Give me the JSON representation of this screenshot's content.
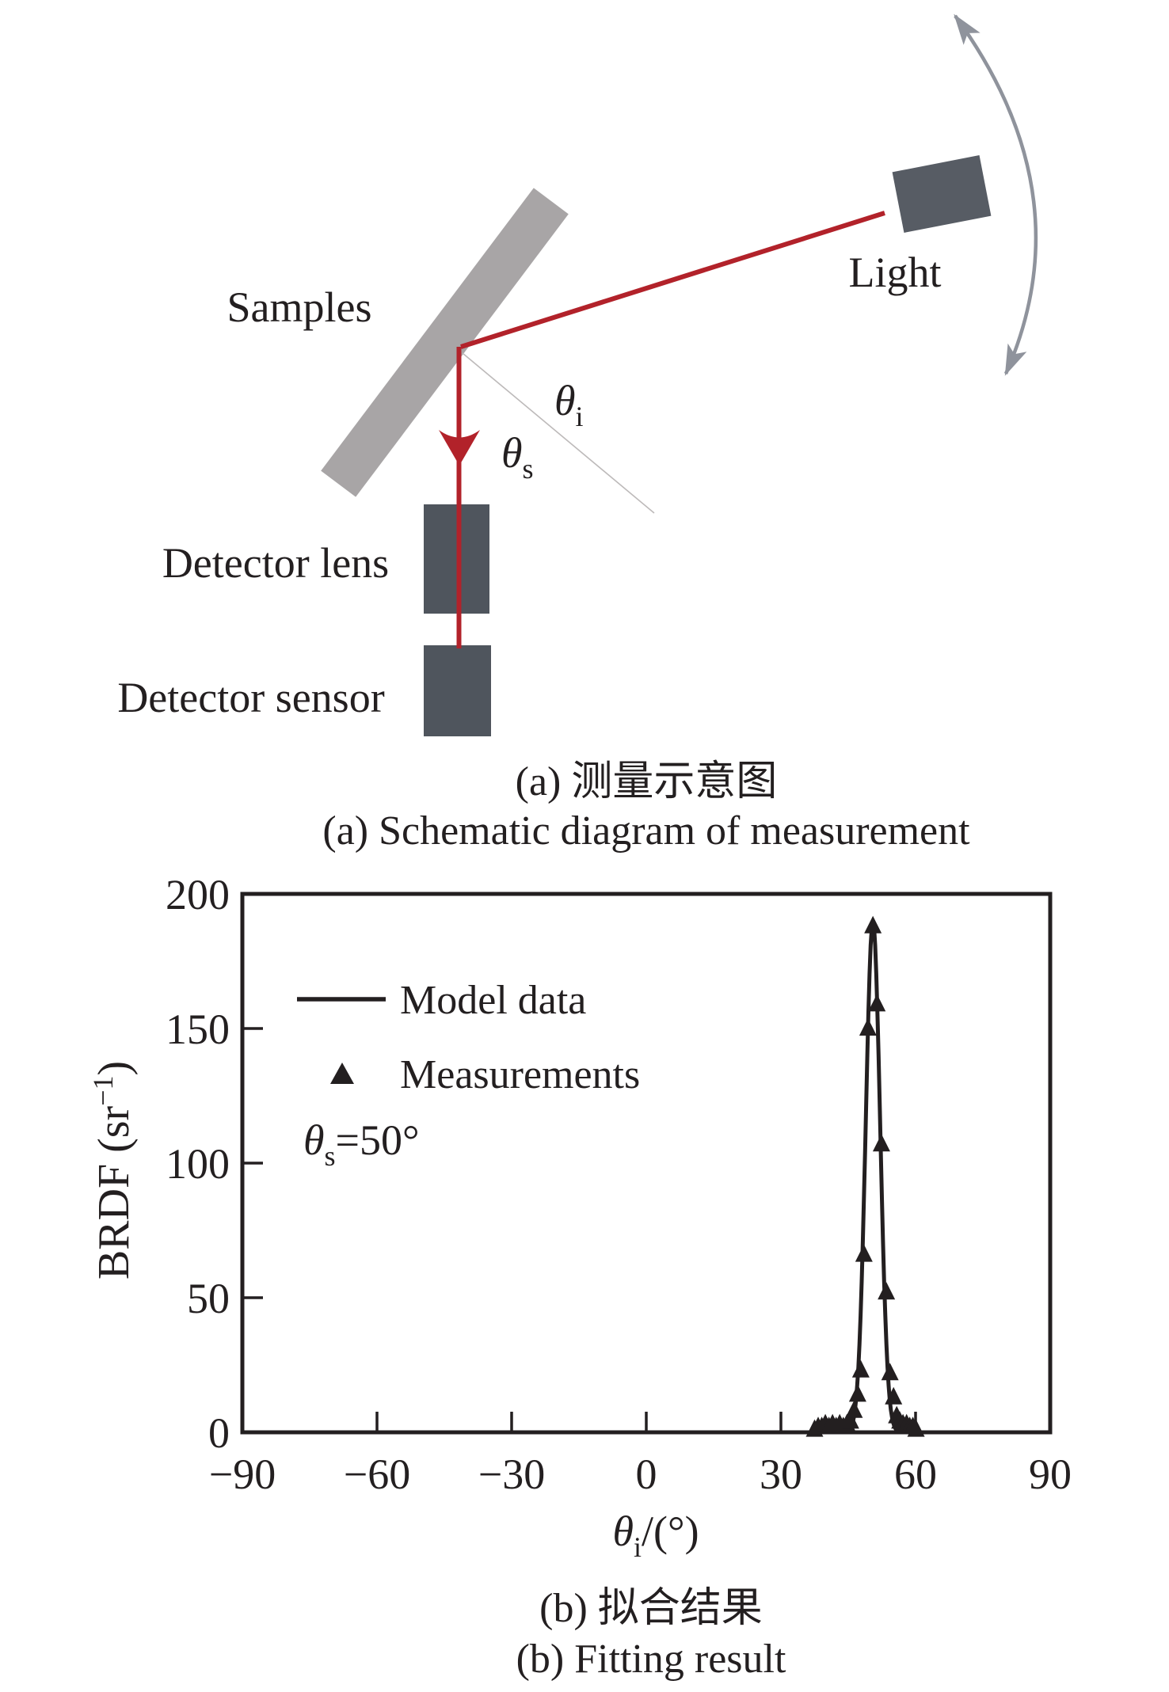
{
  "colors": {
    "ink": "#231f20",
    "beam_red": "#b2222a",
    "sample_gray": "#a8a5a6",
    "device_dark": "#4f555d",
    "light_box": "#575c64",
    "arc_gray": "#8f939c",
    "normal_gray": "#bdbaba",
    "background": "#ffffff"
  },
  "schematic": {
    "labels": {
      "samples": "Samples",
      "light": "Light",
      "detector_lens": "Detector lens",
      "detector_sensor": "Detector sensor"
    },
    "angle_incident": {
      "symbol": "θ",
      "sub": "i"
    },
    "angle_scatter": {
      "symbol": "θ",
      "sub": "s"
    },
    "caption_zh": "(a) 测量示意图",
    "caption_en": "(a)  Schematic diagram of measurement"
  },
  "chart": {
    "ylabel_parts": {
      "main": "BRDF (sr",
      "sup": "−1",
      "close": ")"
    },
    "xlabel_parts": {
      "theta": "θ",
      "sub": "i",
      "rest": "/(°)"
    },
    "annotation_parts": {
      "theta": "θ",
      "sub": "s",
      "rest": "=50°"
    },
    "caption_zh": "(b) 拟合结果",
    "caption_en": "(b) Fitting result"
  },
  "chart_data": {
    "type": "line",
    "title": "",
    "xlabel": "θi/(°)",
    "ylabel": "BRDF (sr−1)",
    "xlim": [
      -90,
      90
    ],
    "ylim": [
      0,
      200
    ],
    "x_ticks": [
      -90,
      -60,
      -30,
      0,
      30,
      60,
      90
    ],
    "y_ticks": [
      0,
      50,
      100,
      150,
      200
    ],
    "grid": false,
    "legend_position": "upper-left",
    "annotation": "θs=50°",
    "series": [
      {
        "name": "Model data",
        "type": "line",
        "shape": "gaussian",
        "center": 50.5,
        "sigma": 1.6,
        "amplitude": 190,
        "baseline": 0
      },
      {
        "name": "Measurements",
        "type": "scatter",
        "marker": "triangle",
        "points": [
          [
            37.5,
            1
          ],
          [
            38.3,
            2
          ],
          [
            39.1,
            2
          ],
          [
            39.9,
            3
          ],
          [
            40.7,
            2
          ],
          [
            41.5,
            3
          ],
          [
            42.3,
            2
          ],
          [
            43.1,
            3
          ],
          [
            43.9,
            2
          ],
          [
            44.7,
            3
          ],
          [
            45.5,
            4
          ],
          [
            46.3,
            8
          ],
          [
            47.1,
            14
          ],
          [
            47.8,
            23
          ],
          [
            48.5,
            66
          ],
          [
            49.4,
            150
          ],
          [
            50.5,
            188
          ],
          [
            51.4,
            159
          ],
          [
            52.4,
            107
          ],
          [
            53.5,
            52
          ],
          [
            54.3,
            22
          ],
          [
            55.1,
            13
          ],
          [
            55.8,
            6
          ],
          [
            56.5,
            4
          ],
          [
            57.2,
            3
          ],
          [
            58.0,
            3
          ],
          [
            58.7,
            2
          ],
          [
            59.4,
            2
          ],
          [
            60.1,
            1
          ]
        ]
      }
    ]
  }
}
